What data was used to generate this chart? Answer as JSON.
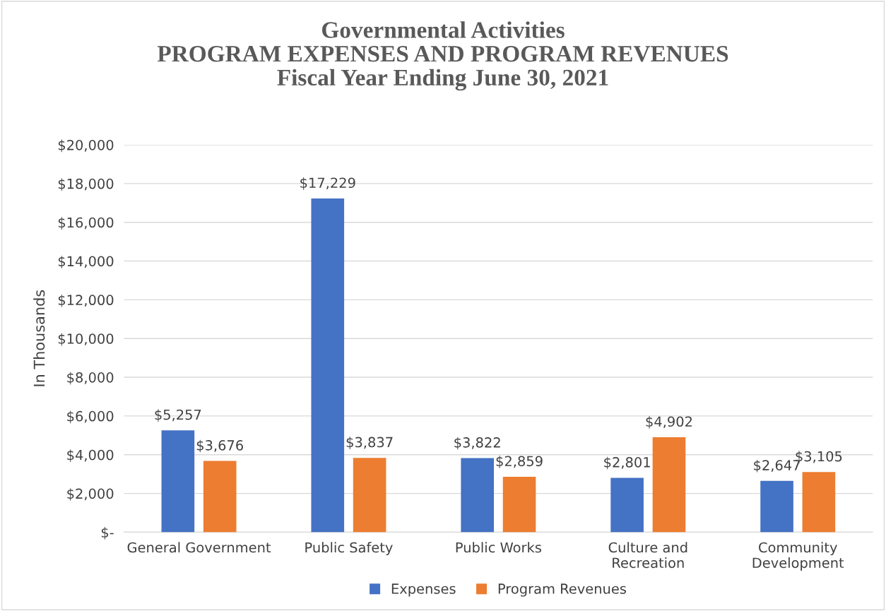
{
  "chart_data": {
    "type": "bar",
    "title": "Governmental Activities\nPROGRAM EXPENSES AND PROGRAM REVENUES\nFiscal Year Ending June 30, 2021",
    "ylabel": "In Thousands",
    "categories": [
      "General Government",
      "Public Safety",
      "Public Works",
      "Culture and\nRecreation",
      "Community\nDevelopment"
    ],
    "series": [
      {
        "name": "Expenses",
        "color": "#4472c4",
        "values": [
          5257,
          17229,
          3822,
          2801,
          2647
        ],
        "value_labels": [
          "$5,257",
          "$17,229",
          "$3,822",
          "$2,801",
          "$2,647"
        ]
      },
      {
        "name": "Program Revenues",
        "color": "#ed7d31",
        "values": [
          3676,
          3837,
          2859,
          4902,
          3105
        ],
        "value_labels": [
          "$3,676",
          "$3,837",
          "$2,859",
          "$4,902",
          "$3,105"
        ]
      }
    ],
    "ylim": [
      0,
      20000
    ],
    "yticks": [
      {
        "value": 0,
        "label": "$-"
      },
      {
        "value": 2000,
        "label": "$2,000"
      },
      {
        "value": 4000,
        "label": "$4,000"
      },
      {
        "value": 6000,
        "label": "$6,000"
      },
      {
        "value": 8000,
        "label": "$8,000"
      },
      {
        "value": 10000,
        "label": "$10,000"
      },
      {
        "value": 12000,
        "label": "$12,000"
      },
      {
        "value": 14000,
        "label": "$14,000"
      },
      {
        "value": 16000,
        "label": "$16,000"
      },
      {
        "value": 18000,
        "label": "$18,000"
      },
      {
        "value": 20000,
        "label": "$20,000"
      }
    ],
    "grid": "y",
    "legend": "bottom"
  }
}
